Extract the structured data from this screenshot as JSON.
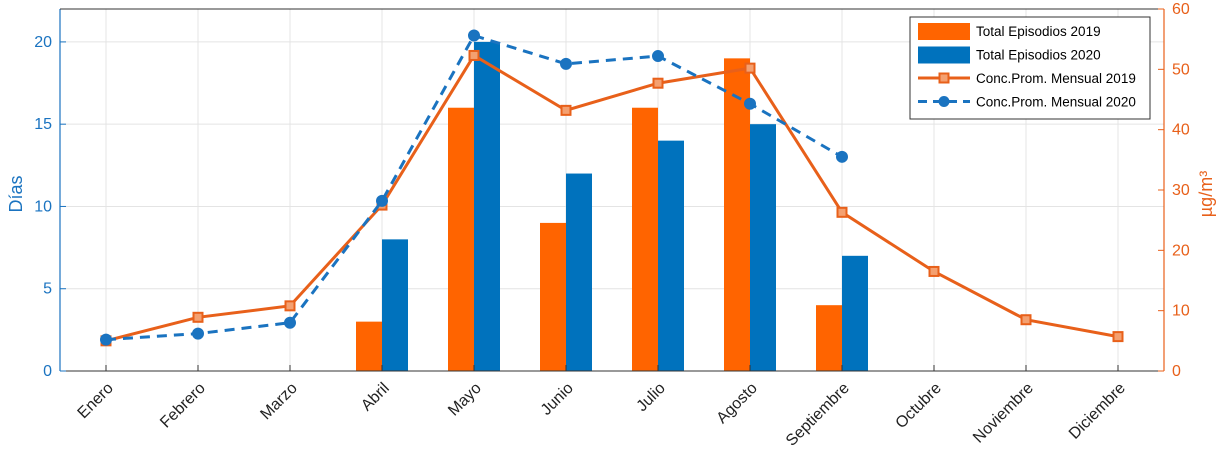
{
  "chart_data": {
    "type": "bar",
    "categories": [
      "Enero",
      "Febrero",
      "Marzo",
      "Abril",
      "Mayo",
      "Junio",
      "Julio",
      "Agosto",
      "Septiembre",
      "Octubre",
      "Noviembre",
      "Diciembre"
    ],
    "ylabel_left": "Días",
    "ylabel_right": "µg/m³",
    "ylim_left": [
      0,
      22
    ],
    "ylim_right": [
      0,
      60
    ],
    "yticks_left": [
      0,
      5,
      10,
      15,
      20
    ],
    "yticks_right": [
      0,
      10,
      20,
      30,
      40,
      50,
      60
    ],
    "grid": true,
    "legend_position": "top-right",
    "bar_series": [
      {
        "name": "Total Episodios 2019",
        "color": "#ff6400",
        "values": [
          null,
          null,
          null,
          3,
          16,
          9,
          16,
          19,
          4,
          null,
          null,
          null
        ]
      },
      {
        "name": "Total Episodios 2020",
        "color": "#0072bd",
        "values": [
          null,
          null,
          null,
          8,
          20,
          12,
          14,
          15,
          7,
          null,
          null,
          null
        ]
      }
    ],
    "line_series": [
      {
        "name": "Conc.Prom. Mensual 2019",
        "color": "#e8601a",
        "style": "solid",
        "marker": "square",
        "axis": "right",
        "values": [
          5,
          8.9,
          10.8,
          27.5,
          52.3,
          43.2,
          47.7,
          50.2,
          26.3,
          16.5,
          8.5,
          5.7
        ]
      },
      {
        "name": "Conc.Prom. Mensual 2020",
        "color": "#1a73c0",
        "style": "dashed",
        "marker": "circle",
        "axis": "right",
        "values": [
          5.2,
          6.2,
          8,
          28.2,
          55.6,
          50.9,
          52.2,
          44.3,
          35.5,
          null,
          null,
          null
        ]
      }
    ]
  }
}
